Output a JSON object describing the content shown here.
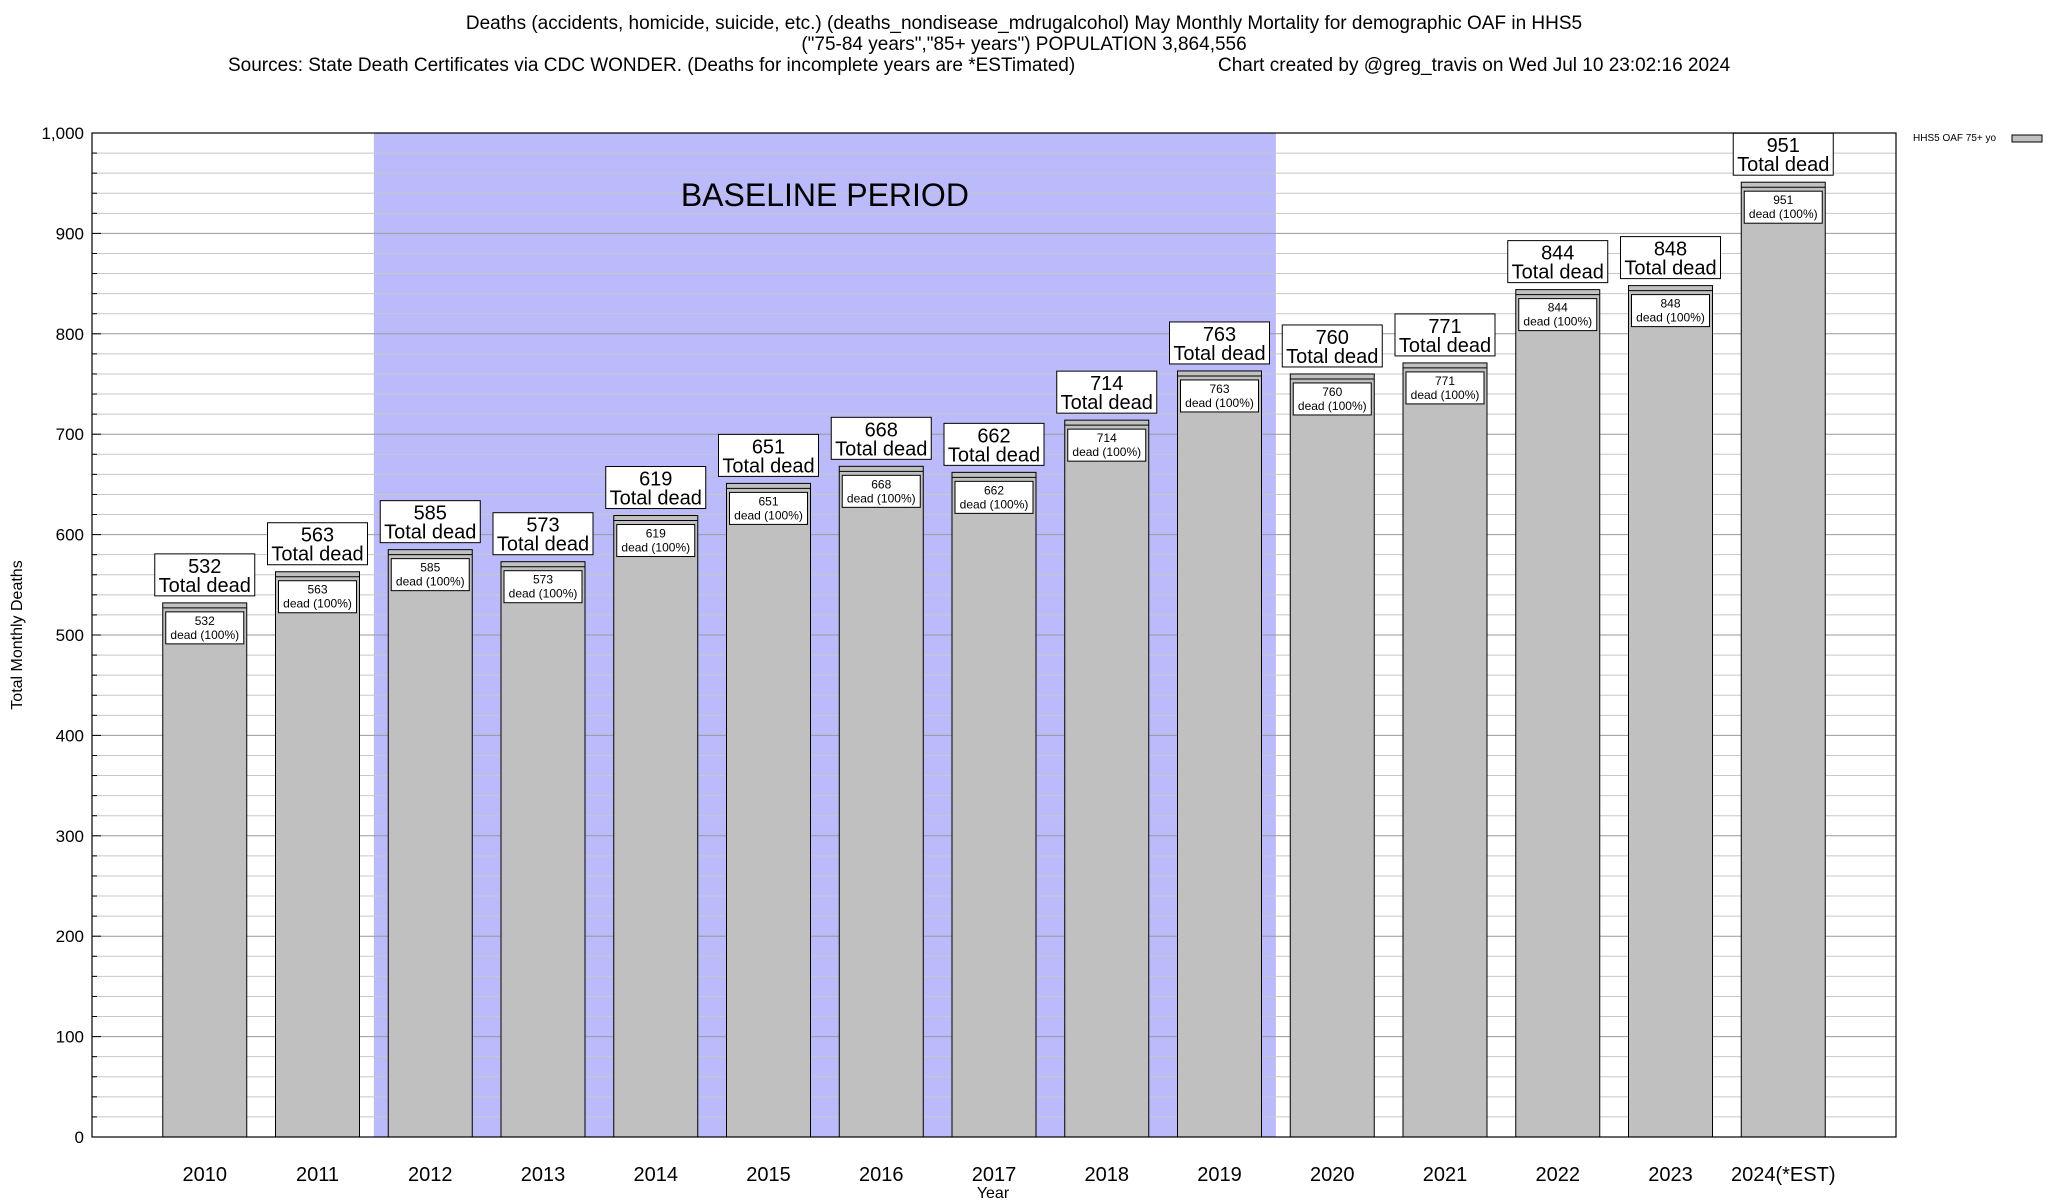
{
  "header": {
    "title": "Deaths (accidents, homicide, suicide, etc.) (deaths_nondisease_mdrugalcohol) May Monthly Mortality for demographic OAF in HHS5",
    "subtitle": "(\"75-84 years\",\"85+ years\") POPULATION 3,864,556",
    "sources": "Sources: State Death Certificates via CDC WONDER. (Deaths for incomplete years are *ESTimated)",
    "credit": "Chart created by @greg_travis on Wed Jul 10 23:02:16 2024"
  },
  "chart_data": {
    "type": "bar",
    "xlabel": "Year",
    "ylabel": "Total Monthly Deaths",
    "ylim": [
      0,
      1000
    ],
    "yticks": [
      0,
      100,
      200,
      300,
      400,
      500,
      600,
      700,
      800,
      900,
      1000
    ],
    "ytick_labels": [
      "0",
      "100",
      "200",
      "300",
      "400",
      "500",
      "600",
      "700",
      "800",
      "900",
      "1,000"
    ],
    "grid": true,
    "legend": {
      "placement": "top-right",
      "label": "HHS5 OAF 75+ yo"
    },
    "categories": [
      "2010",
      "2011",
      "2012",
      "2013",
      "2014",
      "2015",
      "2016",
      "2017",
      "2018",
      "2019",
      "2020",
      "2021",
      "2022",
      "2023",
      "2024(*EST)"
    ],
    "values": [
      532,
      563,
      585,
      573,
      619,
      651,
      668,
      662,
      714,
      763,
      760,
      771,
      844,
      848,
      951
    ],
    "bar_inner_label_suffix": "dead (100%)",
    "bar_total_label_suffix": "Total dead",
    "baseline_period": {
      "label": "BASELINE PERIOD",
      "start": "2012",
      "end": "2019"
    },
    "colors": {
      "bar": "#c0c0c0",
      "baseline": "#bbbbfb"
    }
  }
}
